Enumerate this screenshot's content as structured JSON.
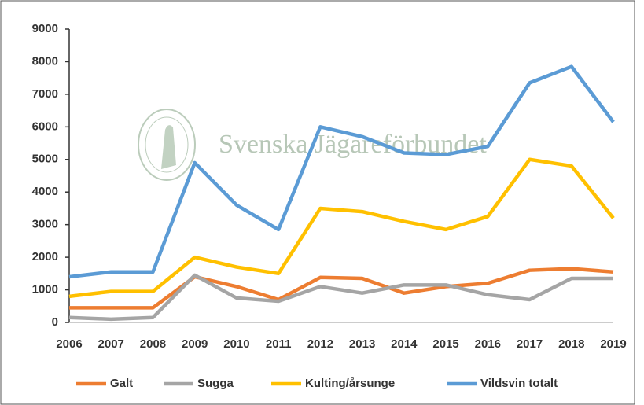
{
  "chart_data": {
    "type": "line",
    "watermark": "Svenska Jägareförbundet",
    "categories": [
      "2006",
      "2007",
      "2008",
      "2009",
      "2010",
      "2011",
      "2012",
      "2013",
      "2014",
      "2015",
      "2016",
      "2017",
      "2018",
      "2019"
    ],
    "series": [
      {
        "name": "Galt",
        "color": "#ED7D31",
        "values": [
          450,
          450,
          450,
          1400,
          1100,
          700,
          1380,
          1350,
          900,
          1100,
          1200,
          1600,
          1650,
          1550
        ]
      },
      {
        "name": "Sugga",
        "color": "#A5A5A5",
        "values": [
          150,
          100,
          150,
          1450,
          750,
          650,
          1100,
          900,
          1150,
          1150,
          850,
          700,
          1350,
          1350
        ]
      },
      {
        "name": "Kulting/årsunge",
        "color": "#FFC000",
        "values": [
          800,
          950,
          950,
          2000,
          1700,
          1500,
          3500,
          3400,
          3100,
          2850,
          3250,
          5000,
          4800,
          3200
        ]
      },
      {
        "name": "Vildsvin totalt",
        "color": "#5B9BD5",
        "values": [
          1400,
          1550,
          1550,
          4900,
          3600,
          2850,
          6000,
          5700,
          5200,
          5150,
          5400,
          7350,
          7850,
          6150
        ]
      }
    ],
    "ylim": [
      0,
      9000
    ],
    "yticks": [
      0,
      1000,
      2000,
      3000,
      4000,
      5000,
      6000,
      7000,
      8000,
      9000
    ],
    "grid": false,
    "legend": "bottom"
  }
}
